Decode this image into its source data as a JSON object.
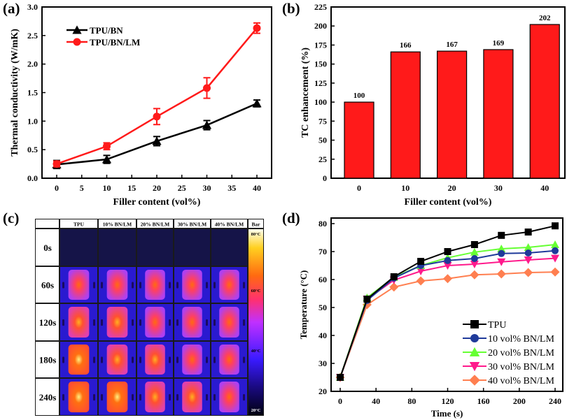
{
  "panel_labels": [
    "(a)",
    "(b)",
    "(c)",
    "(d)"
  ],
  "chart_data": [
    {
      "panel": "(a)",
      "type": "line",
      "xlabel": "Filler content (vol%)",
      "ylabel": "Thermal conductivity (W/mK)",
      "xlim": [
        -3,
        42
      ],
      "ylim": [
        0,
        3.0
      ],
      "xticks": [
        0,
        5,
        10,
        15,
        20,
        25,
        30,
        35,
        40
      ],
      "yticks": [
        "0.0",
        "0.5",
        "1.0",
        "1.5",
        "2.0",
        "2.5",
        "3.0"
      ],
      "x": [
        0,
        10,
        20,
        30,
        40
      ],
      "legend_position": "top-left",
      "series": [
        {
          "name": "TPU/BN",
          "color": "#000000",
          "marker": "triangle",
          "values": [
            0.24,
            0.33,
            0.65,
            0.93,
            1.31
          ],
          "errors": [
            0.07,
            0.07,
            0.08,
            0.08,
            0.06
          ]
        },
        {
          "name": "TPU/BN/LM",
          "color": "#ff1a1a",
          "marker": "circle",
          "values": [
            0.25,
            0.56,
            1.08,
            1.58,
            2.63
          ],
          "errors": [
            0.05,
            0.06,
            0.14,
            0.18,
            0.09
          ]
        }
      ]
    },
    {
      "panel": "(b)",
      "type": "bar",
      "xlabel": "Filler content (vol%)",
      "ylabel": "TC enhancement (%)",
      "ylim": [
        0,
        225
      ],
      "yticks": [
        0,
        25,
        50,
        75,
        100,
        125,
        150,
        175,
        200,
        225
      ],
      "categories": [
        "0",
        "10",
        "20",
        "30",
        "40"
      ],
      "values": [
        100,
        166,
        167,
        169,
        202
      ],
      "data_labels": [
        "100",
        "166",
        "167",
        "169",
        "202"
      ],
      "color": "#ff1a1a"
    },
    {
      "panel": "(d)",
      "type": "line",
      "xlabel": "Time (s)",
      "ylabel": "Temperature (°C)",
      "xlim": [
        -10,
        245
      ],
      "ylim": [
        20,
        82
      ],
      "xticks": [
        0,
        40,
        80,
        120,
        160,
        200,
        240
      ],
      "yticks": [
        20,
        30,
        40,
        50,
        60,
        70,
        80
      ],
      "x": [
        0,
        30,
        60,
        90,
        120,
        150,
        180,
        210,
        240
      ],
      "legend_position": "bottom-right",
      "series": [
        {
          "name": "TPU",
          "color": "#000000",
          "marker": "square",
          "values": [
            25,
            53,
            61,
            66.5,
            70,
            72.5,
            75.8,
            77,
            79.2
          ]
        },
        {
          "name": "10 vol% BN/LM",
          "color": "#1f3a9a",
          "marker": "circle",
          "values": [
            25,
            52.5,
            60.5,
            65,
            66.8,
            67.5,
            69.3,
            69.5,
            70.3
          ]
        },
        {
          "name": "20 vol% BN/LM",
          "color": "#66ff33",
          "marker": "triangle",
          "values": [
            25,
            53.5,
            60.8,
            65,
            67.8,
            69.8,
            71,
            71.5,
            72.5
          ]
        },
        {
          "name": "30 vol% BN/LM",
          "color": "#ff1a8c",
          "marker": "triangle-down",
          "values": [
            25,
            53,
            59.8,
            63,
            65,
            65.5,
            66.3,
            67,
            67.6
          ]
        },
        {
          "name": "40 vol% BN/LM",
          "color": "#ff7f50",
          "marker": "diamond",
          "values": [
            25,
            51,
            57.3,
            59.5,
            60.3,
            61.7,
            62,
            62.5,
            62.7
          ]
        }
      ]
    }
  ],
  "thermal_table": {
    "columns": [
      "TPU",
      "10% BN/LM",
      "20% BN/LM",
      "30% BN/LM",
      "40% BN/LM",
      "Bar"
    ],
    "rows": [
      "0s",
      "60s",
      "120s",
      "180s",
      "240s"
    ],
    "colorbar_labels": [
      "80°C",
      "60°C",
      "40°C",
      "20°C"
    ]
  }
}
